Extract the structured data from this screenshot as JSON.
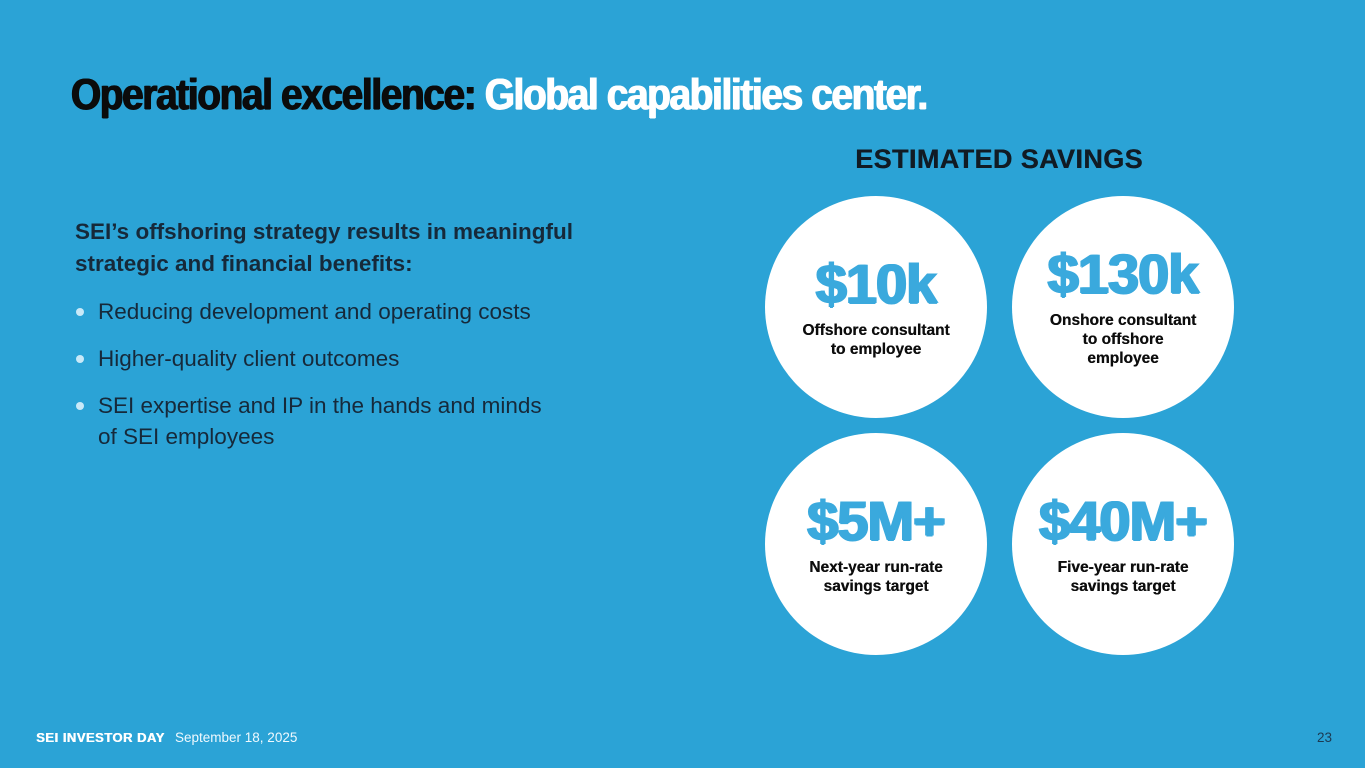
{
  "title": {
    "prefix": "Operational excellence: ",
    "highlight": "Global capabilities center."
  },
  "left": {
    "intro": "SEI’s offshoring strategy results in meaningful\nstrategic and financial benefits:",
    "bullets": [
      "Reducing development and operating costs",
      "Higher-quality client outcomes",
      "SEI expertise and IP in the hands and minds\nof SEI employees"
    ]
  },
  "savings": {
    "heading": "ESTIMATED SAVINGS",
    "items": [
      {
        "value": "$10k",
        "label": "Offshore consultant\nto employee"
      },
      {
        "value": "$130k",
        "label": "Onshore consultant\nto offshore\nemployee"
      },
      {
        "value": "$5M+",
        "label": "Next-year run-rate\nsavings target"
      },
      {
        "value": "$40M+",
        "label": "Five-year run-rate\nsavings target"
      }
    ]
  },
  "footer": {
    "brand": "SEI INVESTOR DAY",
    "date": "September 18, 2025",
    "page": "23"
  },
  "colors": {
    "background": "#2BA3D6",
    "accent_value_blue": "#3AA9DD",
    "dark_text": "#16293A",
    "title_black": "#0B0B0B",
    "circle_white": "#FFFFFF",
    "bullet_dot": "#C9E9F8",
    "page_number": "#1C3A52"
  }
}
